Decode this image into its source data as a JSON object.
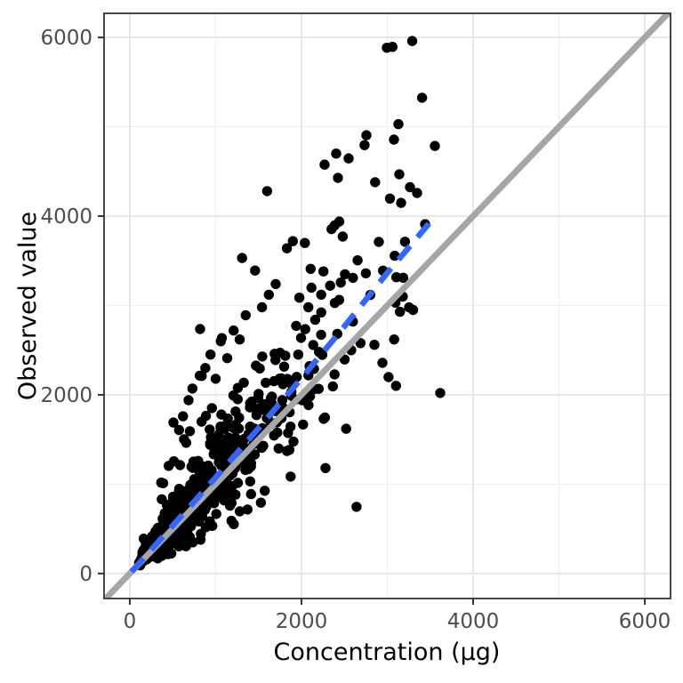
{
  "chart_data": {
    "type": "scatter",
    "title": "",
    "xlabel": "Concentration (µg)",
    "ylabel": "Observed value",
    "x_ticks": [
      0,
      2000,
      4000,
      6000
    ],
    "y_ticks": [
      0,
      2000,
      4000,
      6000
    ],
    "x_minor_gridlines": [
      1000,
      3000,
      5000
    ],
    "y_minor_gridlines": [
      1000,
      3000,
      5000
    ],
    "xlim": [
      -300,
      6300
    ],
    "ylim": [
      -280,
      6270
    ],
    "grid": "on",
    "legend": "none",
    "point_color": "#000000",
    "point_radius": 5.7,
    "points_total_estimate": 915,
    "identity_line": {
      "name": "identity-reference-line",
      "slope": 1,
      "intercept": 0,
      "color": "#a6a6a6",
      "width": 7,
      "style": "solid"
    },
    "smooth_line": {
      "name": "regression-smooth-line",
      "color": "#3366FF",
      "width": 6.5,
      "style": "dashed",
      "dash_pattern": [
        20,
        13
      ],
      "path": [
        [
          20,
          20
        ],
        [
          500,
          535
        ],
        [
          1000,
          1075
        ],
        [
          1500,
          1625
        ],
        [
          2000,
          2185
        ],
        [
          2500,
          2765
        ],
        [
          3000,
          3365
        ],
        [
          3550,
          3990
        ]
      ]
    },
    "outlier_points": [
      [
        2995,
        5885
      ],
      [
        3060,
        5895
      ],
      [
        3290,
        5960
      ],
      [
        3130,
        5030
      ],
      [
        2756,
        4905
      ],
      [
        3078,
        4856
      ],
      [
        2735,
        4795
      ],
      [
        3554,
        4786
      ],
      [
        2404,
        4700
      ],
      [
        2549,
        4646
      ],
      [
        2270,
        4577
      ],
      [
        3140,
        4468
      ],
      [
        2425,
        4428
      ],
      [
        3347,
        4259
      ],
      [
        1600,
        4280
      ],
      [
        3161,
        4149
      ],
      [
        2440,
        3940
      ],
      [
        3440,
        3910
      ],
      [
        2350,
        3855
      ],
      [
        1900,
        3720
      ],
      [
        2040,
        3700
      ],
      [
        1830,
        3640
      ],
      [
        2600,
        3310
      ],
      [
        2750,
        3360
      ],
      [
        2950,
        3390
      ],
      [
        3180,
        3100
      ],
      [
        3300,
        2950
      ],
      [
        2850,
        2560
      ],
      [
        3080,
        2620
      ],
      [
        2943,
        2358
      ],
      [
        3015,
        2199
      ],
      [
        3617,
        2020
      ],
      [
        2642,
        746
      ],
      [
        2280,
        1180
      ],
      [
        2520,
        1620
      ],
      [
        1210,
        2720
      ],
      [
        1350,
        2890
      ],
      [
        1280,
        2620
      ],
      [
        1620,
        3120
      ],
      [
        1700,
        3240
      ],
      [
        1540,
        2980
      ],
      [
        2080,
        2980
      ],
      [
        2230,
        3120
      ],
      [
        2160,
        2840
      ],
      [
        819,
        2736
      ],
      [
        815,
        2215
      ],
      [
        684,
        1940
      ],
      [
        508,
        1690
      ],
      [
        940,
        2450
      ],
      [
        1060,
        2600
      ],
      [
        620,
        1760
      ],
      [
        730,
        2070
      ],
      [
        880,
        2300
      ],
      [
        1000,
        2180
      ]
    ],
    "cloud": {
      "note": "dense heteroscedastic point cloud hugging the diagonal; individual values estimated from pixels",
      "n": 860,
      "seed": 42,
      "x_lognormal_mu": 6.5,
      "x_lognormal_sigma": 0.7,
      "x_max": 3600,
      "ratio_center": 1.07,
      "ratio_sd_up": 0.27,
      "ratio_sd_down": 0.185,
      "upper_fan_prob": 0.045,
      "lower_straggler_prob": 0.02
    },
    "style": {
      "panel_background": "#ffffff",
      "panel_border_color": "#333333",
      "grid_major_color": "#e5e5e5",
      "grid_minor_color": "#f0f0f0",
      "tick_mark_color": "#333333",
      "tick_label_color": "#4d4d4d",
      "axis_title_color": "#000000"
    }
  }
}
